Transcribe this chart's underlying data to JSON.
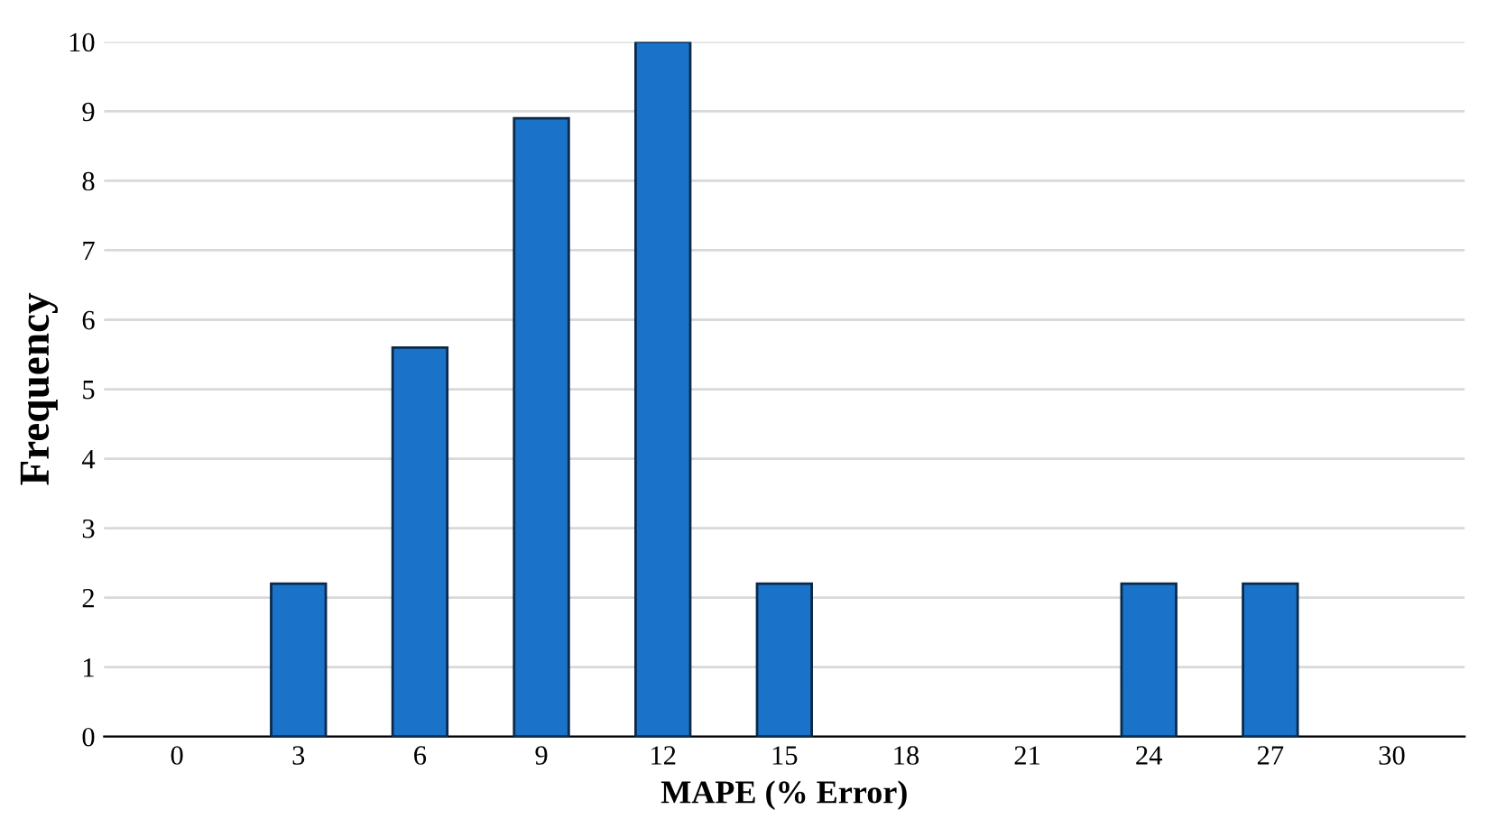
{
  "chart_data": {
    "type": "bar",
    "xlabel": "MAPE (% Error)",
    "ylabel": "Frequency",
    "categories": [
      "0",
      "3",
      "6",
      "9",
      "12",
      "15",
      "18",
      "21",
      "24",
      "27",
      "30"
    ],
    "values": [
      0,
      2.2,
      5.6,
      8.9,
      10,
      2.2,
      0,
      0,
      2.2,
      2.2,
      0
    ],
    "color": "#1a73c8",
    "ylim": [
      0,
      10
    ],
    "yticks": [
      0,
      1,
      2,
      3,
      4,
      5,
      6,
      7,
      8,
      9,
      10
    ],
    "grid": "y",
    "legend": false
  }
}
